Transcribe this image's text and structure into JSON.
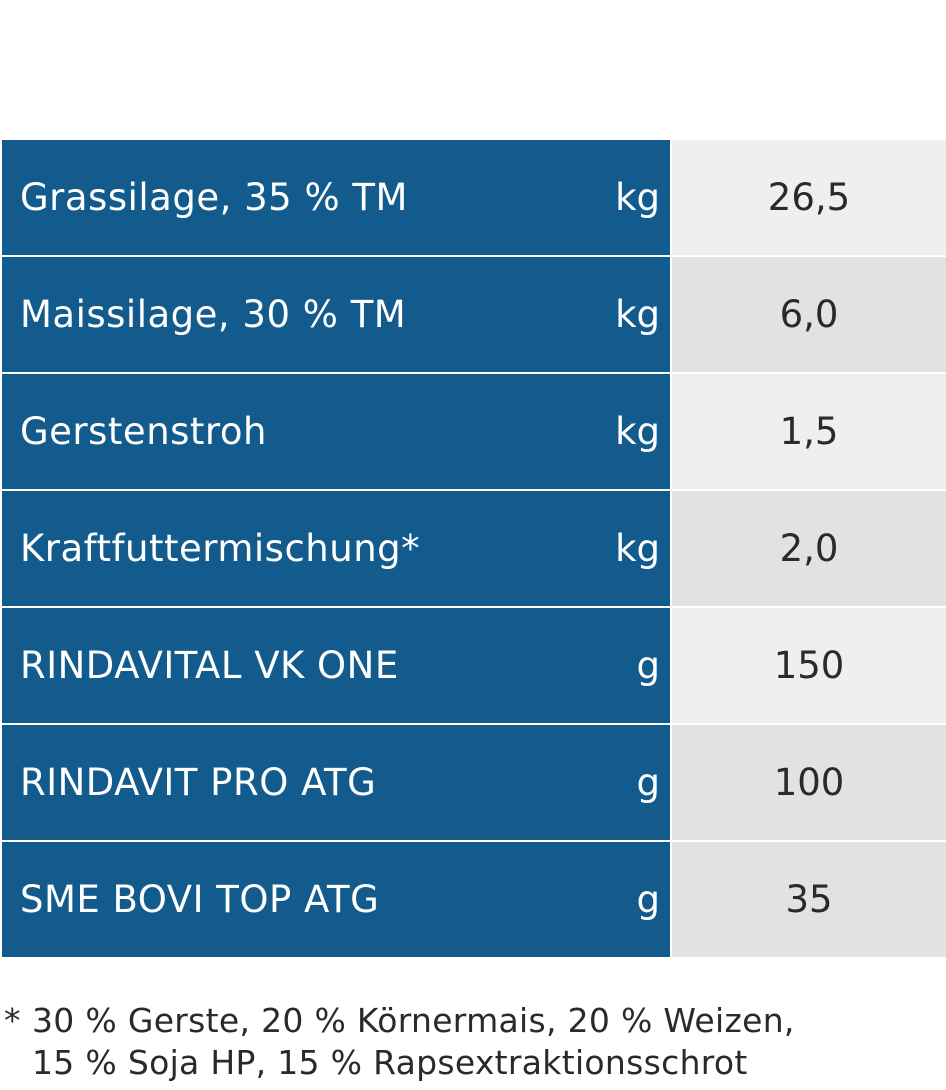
{
  "table": {
    "rows": [
      {
        "name": "Grassilage, 35 % TM",
        "unit": "kg",
        "value": "26,5"
      },
      {
        "name": "Maissilage, 30 % TM",
        "unit": "kg",
        "value": "6,0"
      },
      {
        "name": "Gerstenstroh",
        "unit": "kg",
        "value": "1,5"
      },
      {
        "name": "Kraftfuttermischung*",
        "unit": "kg",
        "value": "2,0"
      },
      {
        "name": "RINDAVITAL VK ONE",
        "unit": "g",
        "value": "150"
      },
      {
        "name": "RINDAVIT PRO ATG",
        "unit": "g",
        "value": "100"
      },
      {
        "name": "SME BOVI TOP ATG",
        "unit": "g",
        "value": "35"
      }
    ]
  },
  "footnote": {
    "mark": "*",
    "line1": "30 % Gerste, 20 % Körnermais, 20 % Weizen,",
    "line2": "15 % Soja HP, 15 % Rapsextraktionsschrot"
  },
  "colors": {
    "header_blue": "#135b8d",
    "value_light": "#efefef",
    "value_alt": "#e2e2e2"
  }
}
